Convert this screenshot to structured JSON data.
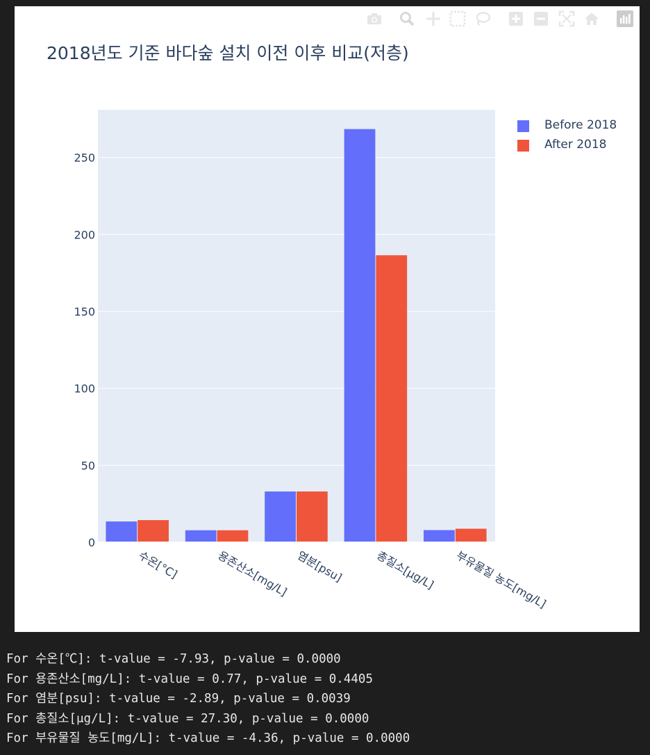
{
  "chart_data": {
    "type": "bar",
    "title": "2018년도 기준 바다숲 설치 이전 이후 비교(저층)",
    "xlabel": "",
    "ylabel": "",
    "categories": [
      "수온[°C]",
      "용존산소[mg/L]",
      "염분[psu]",
      "총질소[μg/L]",
      "부유물질 농도[mg/L]"
    ],
    "series": [
      {
        "name": "Before 2018",
        "color": "#636efa",
        "values": [
          13.5,
          7.8,
          33.0,
          268.5,
          7.9
        ]
      },
      {
        "name": "After 2018",
        "color": "#ef553b",
        "values": [
          14.4,
          7.8,
          33.0,
          186.5,
          8.8
        ]
      }
    ],
    "ylim": [
      0,
      281
    ],
    "yticks": [
      0,
      50,
      100,
      150,
      200,
      250
    ],
    "grid": true,
    "legend_position": "top-right",
    "plot_bgcolor": "#e5ecf6",
    "text_color": "#2a3f5f"
  },
  "modebar": {
    "icons": [
      "camera-icon",
      "zoom-icon",
      "pan-icon",
      "box-select-icon",
      "lasso-select-icon",
      "zoom-in-icon",
      "zoom-out-icon",
      "autoscale-icon",
      "reset-axes-icon",
      "plotly-logo-icon"
    ]
  },
  "console": {
    "lines": [
      "For 수온[℃]: t-value = -7.93, p-value = 0.0000",
      "For 용존산소[mg/L]: t-value = 0.77, p-value = 0.4405",
      "For 염분[psu]: t-value = -2.89, p-value = 0.0039",
      "For 총질소[μg/L]: t-value = 27.30, p-value = 0.0000",
      "For 부유물질 농도[mg/L]: t-value = -4.36, p-value = 0.0000"
    ]
  }
}
